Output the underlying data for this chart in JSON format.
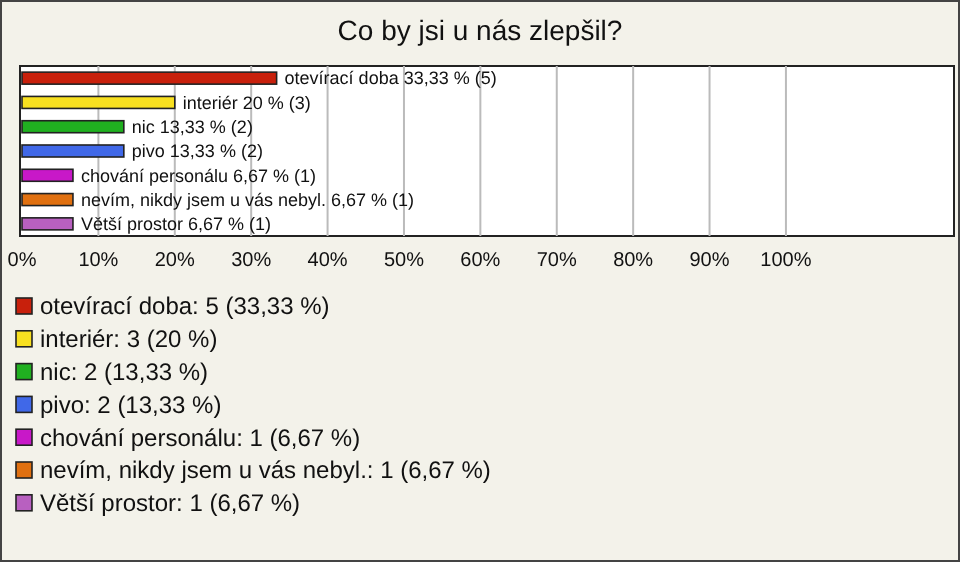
{
  "chart_data": {
    "type": "bar",
    "title": "Co by jsi u nás zlepšil?",
    "orientation": "horizontal",
    "categories": [
      null,
      null,
      null,
      null,
      null,
      null,
      null
    ],
    "series": [
      {
        "name": "otevírací doba: 5 (33,33 %)",
        "color": "#c8200c",
        "values": [
          33.33,
          null,
          null,
          null,
          null,
          null,
          null
        ],
        "value_labels": [
          "otevírací doba 33,33 % (5)",
          null,
          null,
          null,
          null,
          null,
          null
        ]
      },
      {
        "name": "interiér: 3 (20 %)",
        "color": "#f8e020",
        "values": [
          null,
          20,
          null,
          null,
          null,
          null,
          null
        ],
        "value_labels": [
          null,
          "interiér 20 % (3)",
          null,
          null,
          null,
          null,
          null
        ]
      },
      {
        "name": "nic: 2 (13,33 %)",
        "color": "#20b020",
        "values": [
          null,
          null,
          13.33,
          null,
          null,
          null,
          null
        ],
        "value_labels": [
          null,
          null,
          "nic 13,33 % (2)",
          null,
          null,
          null,
          null
        ]
      },
      {
        "name": "pivo: 2 (13,33 %)",
        "color": "#4068e8",
        "values": [
          null,
          null,
          null,
          13.33,
          null,
          null,
          null
        ],
        "value_labels": [
          null,
          null,
          null,
          "pivo 13,33 % (2)",
          null,
          null,
          null
        ]
      },
      {
        "name": "chování personálu: 1 (6,67 %)",
        "color": "#c818c8",
        "values": [
          null,
          null,
          null,
          null,
          6.67,
          null,
          null
        ],
        "value_labels": [
          null,
          null,
          null,
          null,
          "chování personálu 6,67 % (1)",
          null,
          null
        ]
      },
      {
        "name": "nevím, nikdy jsem u vás nebyl.: 1 (6,67 %)",
        "color": "#e07010",
        "values": [
          null,
          null,
          null,
          null,
          null,
          6.67,
          null
        ],
        "value_labels": [
          null,
          null,
          null,
          null,
          null,
          "nevím, nikdy jsem u vás nebyl. 6,67 % (1)",
          null
        ]
      },
      {
        "name": "Větší prostor: 1 (6,67 %)",
        "color": "#b860c0",
        "values": [
          null,
          null,
          null,
          null,
          null,
          null,
          6.67
        ],
        "value_labels": [
          null,
          null,
          null,
          null,
          null,
          null,
          "Větší prostor 6,67 % (1)"
        ]
      }
    ],
    "xlim": [
      0,
      122
    ],
    "xticks": [
      {
        "value": 0,
        "label": "0%"
      },
      {
        "value": 10,
        "label": "10%"
      },
      {
        "value": 20,
        "label": "20%"
      },
      {
        "value": 30,
        "label": "30%"
      },
      {
        "value": 40,
        "label": "40%"
      },
      {
        "value": 50,
        "label": "50%"
      },
      {
        "value": 60,
        "label": "60%"
      },
      {
        "value": 70,
        "label": "70%"
      },
      {
        "value": 80,
        "label": "80%"
      },
      {
        "value": 90,
        "label": "90%"
      },
      {
        "value": 100,
        "label": "100%"
      }
    ],
    "grid": "x",
    "legend": "bottom"
  }
}
